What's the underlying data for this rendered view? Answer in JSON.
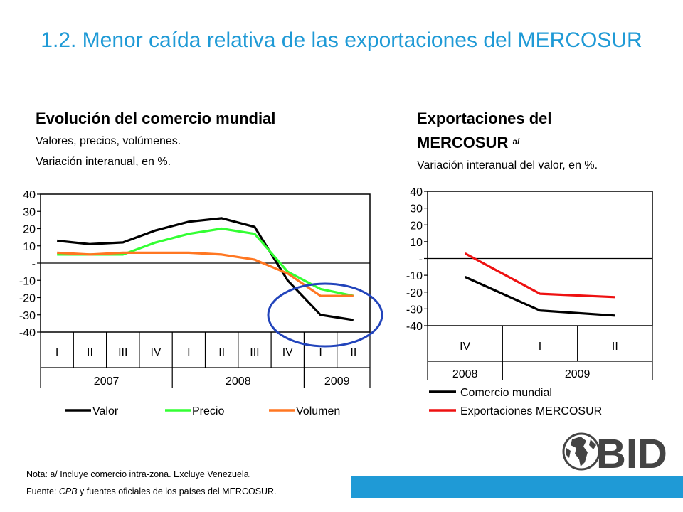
{
  "title": "1.2. Menor caída relativa de las exportaciones del MERCOSUR",
  "left": {
    "heading": "Evolución del comercio mundial",
    "sub1": "Valores, precios, volúmenes.",
    "sub2": "Variación interanual, en %."
  },
  "right": {
    "heading1": "Exportaciones del",
    "heading2": "MERCOSUR",
    "sup": "a/",
    "sub": "Variación interanual del valor, en %."
  },
  "notes": {
    "line1": "Nota: a/ Incluye comercio intra-zona. Excluye Venezuela.",
    "line2_prefix": "Fuente: ",
    "line2_italic": "CPB",
    "line2_suffix": " y fuentes oficiales de los países del MERCOSUR."
  },
  "logo_text": "BID",
  "colors": {
    "title": "#1f9ad6",
    "valor": "#000000",
    "precio": "#33ff33",
    "volumen": "#ff7722",
    "mercosur": "#ee1111",
    "highlight_circle": "#2244bb",
    "footer_bar": "#1f9ad6"
  },
  "chart_data": [
    {
      "type": "line",
      "ylim": [
        -40,
        40
      ],
      "yticks": [
        "40",
        "30",
        "20",
        "10",
        "-",
        "-10",
        "-20",
        "-30",
        "-40"
      ],
      "quarters": [
        "I",
        "II",
        "III",
        "IV",
        "I",
        "II",
        "III",
        "IV",
        "I",
        "II"
      ],
      "years": [
        {
          "label": "2007",
          "quarters": 4
        },
        {
          "label": "2008",
          "quarters": 4
        },
        {
          "label": "2009",
          "quarters": 2
        }
      ],
      "series": [
        {
          "name": "Valor",
          "color": "#000000",
          "values": [
            13,
            11,
            12,
            19,
            24,
            26,
            21,
            -10,
            -30,
            -33
          ]
        },
        {
          "name": "Precio",
          "color": "#33ff33",
          "values": [
            5,
            5,
            5,
            12,
            17,
            20,
            17,
            -5,
            -15,
            -19
          ]
        },
        {
          "name": "Volumen",
          "color": "#ff7722",
          "values": [
            6,
            5,
            6,
            6,
            6,
            5,
            2,
            -6,
            -19,
            -19
          ]
        }
      ]
    },
    {
      "type": "line",
      "ylim": [
        -40,
        40
      ],
      "yticks": [
        "40",
        "30",
        "20",
        "10",
        "-",
        "-10",
        "-20",
        "-30",
        "-40"
      ],
      "quarters": [
        "IV",
        "I",
        "II"
      ],
      "years": [
        {
          "label": "2008",
          "quarters": 1
        },
        {
          "label": "2009",
          "quarters": 2
        }
      ],
      "series": [
        {
          "name": "Comercio mundial",
          "color": "#000000",
          "values": [
            -11,
            -31,
            -34
          ]
        },
        {
          "name": "Exportaciones MERCOSUR",
          "color": "#ee1111",
          "values": [
            3,
            -21,
            -23
          ]
        }
      ]
    }
  ]
}
